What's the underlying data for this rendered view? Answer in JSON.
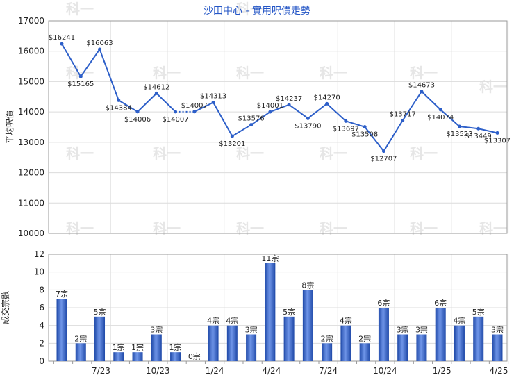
{
  "chart_data": [
    {
      "type": "line",
      "title": "沙田中心 - 實用呎價走勢",
      "ylabel": "平均呎價",
      "ylim": [
        10000,
        17000
      ],
      "yticks": [
        10000,
        11000,
        12000,
        13000,
        14000,
        15000,
        16000,
        17000
      ],
      "grid": true,
      "label_prefix": "$",
      "values": [
        16241,
        15165,
        16063,
        14384,
        14006,
        14612,
        14007,
        14007,
        14313,
        13201,
        13576,
        14001,
        14237,
        13790,
        14270,
        13697,
        13508,
        12707,
        13717,
        14673,
        14074,
        13523,
        13449,
        13307
      ],
      "dotted_segment": [
        6,
        7
      ],
      "color": "#2d5fc9"
    },
    {
      "type": "bar",
      "ylabel": "成交宗數",
      "ylim": [
        0,
        12
      ],
      "yticks": [
        0,
        2,
        4,
        6,
        8,
        10,
        12
      ],
      "grid": true,
      "label_suffix": "宗",
      "values": [
        7,
        2,
        5,
        1,
        1,
        3,
        1,
        0,
        4,
        4,
        3,
        11,
        5,
        8,
        2,
        4,
        2,
        6,
        3,
        3,
        6,
        4,
        5,
        3
      ],
      "x_tick_labels": [
        {
          "index": 2,
          "label": "7/23"
        },
        {
          "index": 5,
          "label": "10/23"
        },
        {
          "index": 8,
          "label": "1/24"
        },
        {
          "index": 11,
          "label": "4/24"
        },
        {
          "index": 14,
          "label": "7/24"
        },
        {
          "index": 17,
          "label": "10/24"
        },
        {
          "index": 20,
          "label": "1/25"
        },
        {
          "index": 23,
          "label": "4/25"
        }
      ],
      "color": "#2d5fc9"
    }
  ],
  "watermark": "科一"
}
